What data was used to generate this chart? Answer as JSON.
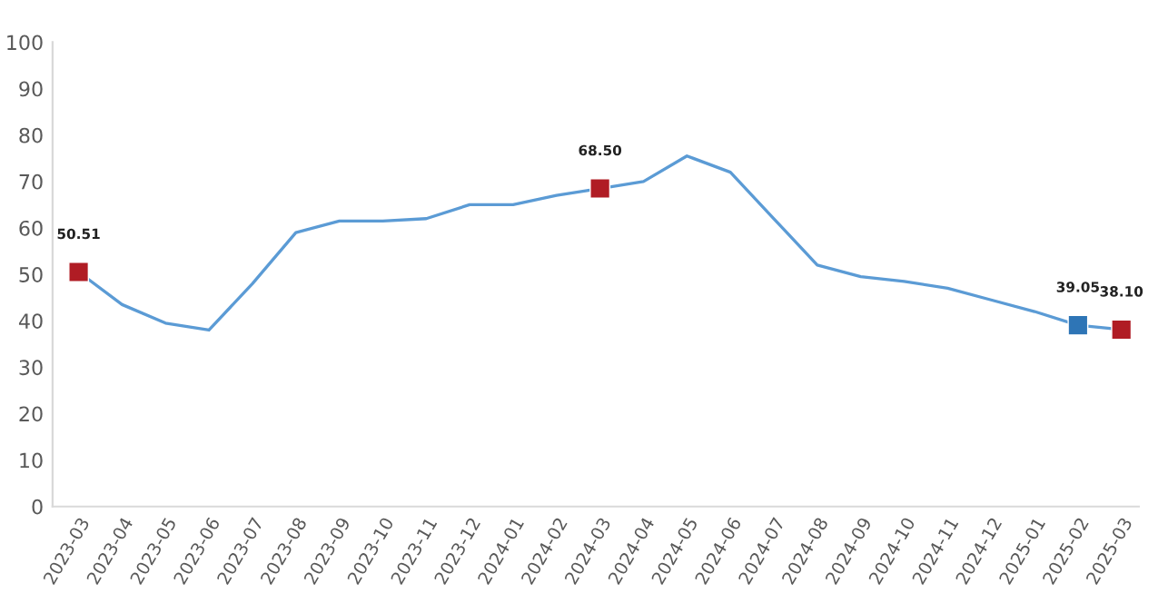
{
  "chart_data": {
    "type": "line",
    "categories": [
      "2023-03",
      "2023-04",
      "2023-05",
      "2023-06",
      "2023-07",
      "2023-08",
      "2023-09",
      "2023-10",
      "2023-11",
      "2023-12",
      "2024-01",
      "2024-02",
      "2024-03",
      "2024-04",
      "2024-05",
      "2024-06",
      "2024-07",
      "2024-08",
      "2024-09",
      "2024-10",
      "2024-11",
      "2024-12",
      "2025-01",
      "2025-02",
      "2025-03"
    ],
    "series": [
      {
        "color": "#5b9bd5",
        "values": [
          50.51,
          43.5,
          39.5,
          38,
          48,
          59,
          61.5,
          61.5,
          62,
          65,
          65,
          67,
          68.5,
          70,
          75.5,
          72,
          62,
          52,
          49.5,
          48.5,
          47,
          44.5,
          42,
          39.05,
          38.1
        ]
      },
      {
        "type": "scatter",
        "marker": "square",
        "colors": [
          "#b01c24",
          null,
          null,
          null,
          null,
          null,
          null,
          null,
          null,
          null,
          null,
          null,
          "#b01c24",
          null,
          null,
          null,
          null,
          null,
          null,
          null,
          null,
          null,
          null,
          "#2e75b6",
          "#b01c24"
        ],
        "values": [
          50.51,
          null,
          null,
          null,
          null,
          null,
          null,
          null,
          null,
          null,
          null,
          null,
          68.5,
          null,
          null,
          null,
          null,
          null,
          null,
          null,
          null,
          null,
          null,
          39.05,
          38.1
        ],
        "value_labels": [
          "50.51",
          null,
          null,
          null,
          null,
          null,
          null,
          null,
          null,
          null,
          null,
          null,
          "68.50",
          null,
          null,
          null,
          null,
          null,
          null,
          null,
          null,
          null,
          null,
          "39.05",
          "38.10"
        ]
      }
    ],
    "ylim": [
      0,
      100
    ],
    "yticks": [
      0,
      10,
      20,
      30,
      40,
      50,
      60,
      70,
      80,
      90,
      100
    ],
    "grid": false,
    "legend": false
  }
}
